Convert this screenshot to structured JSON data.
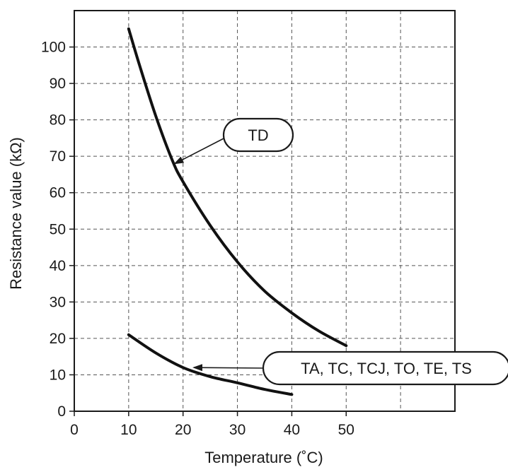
{
  "chart_data": {
    "type": "line",
    "title": "",
    "xlabel": "Temperature (˚C)",
    "ylabel": "Resistance value (kΩ)",
    "xlim": [
      0,
      70
    ],
    "ylim": [
      0,
      110
    ],
    "x_ticks": [
      "0",
      "10",
      "20",
      "30",
      "40",
      "50"
    ],
    "y_ticks": [
      "0",
      "10",
      "20",
      "30",
      "40",
      "50",
      "60",
      "70",
      "80",
      "90",
      "100"
    ],
    "grid": "dashed",
    "series": [
      {
        "name": "TD",
        "x": [
          10,
          12,
          15,
          18,
          20,
          25,
          30,
          35,
          40,
          45,
          50
        ],
        "y": [
          105,
          95,
          81,
          69,
          63,
          51,
          41,
          33,
          27,
          22,
          18
        ]
      },
      {
        "name": "TA, TC, TCJ, TO, TE, TS",
        "x": [
          10,
          15,
          20,
          25,
          30,
          35,
          40
        ],
        "y": [
          21,
          16,
          12,
          9.5,
          7.8,
          6,
          4.6
        ]
      }
    ],
    "annotations": [
      {
        "label": "TD",
        "series": "TD",
        "arrow_to": [
          18.5,
          68
        ]
      },
      {
        "label": "TA, TC, TCJ, TO, TE, TS",
        "series": "TA, TC, TCJ, TO, TE, TS",
        "arrow_to": [
          22,
          12
        ]
      }
    ]
  }
}
